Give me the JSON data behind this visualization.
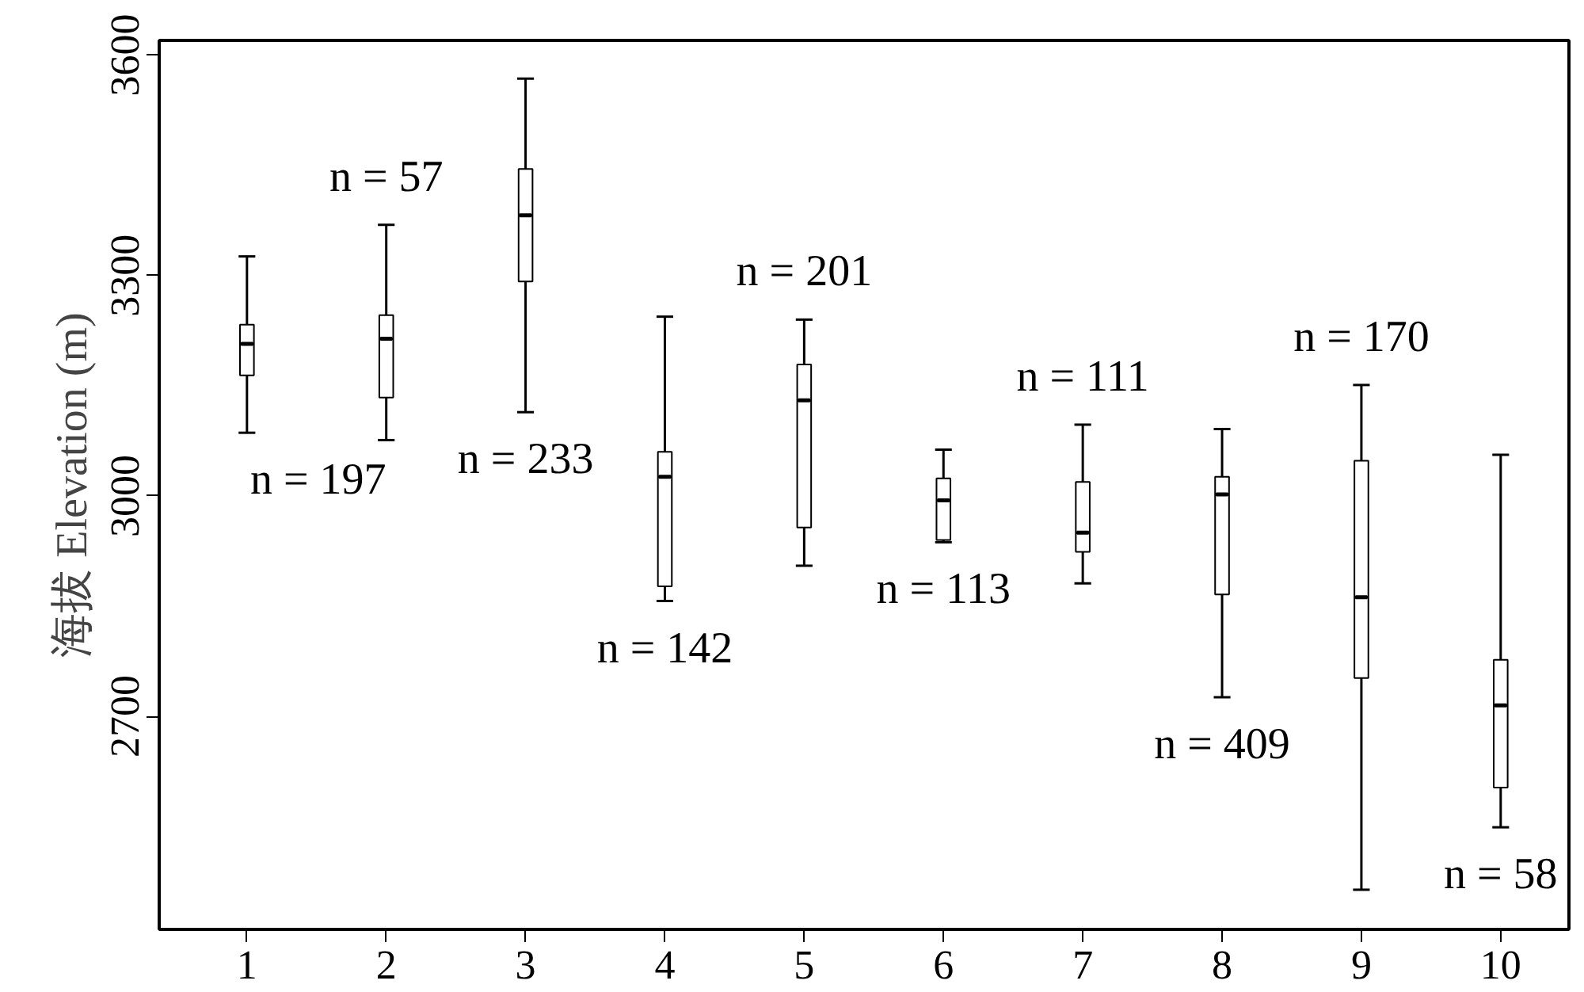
{
  "chart_data": {
    "type": "box",
    "ylabel": "海拔 Elevation (m)",
    "categories": [
      "1",
      "2",
      "3",
      "4",
      "5",
      "6",
      "7",
      "8",
      "9",
      "10"
    ],
    "ylim": [
      2410,
      3620
    ],
    "yticks": [
      2700,
      3000,
      3300,
      3600
    ],
    "grid": false,
    "series": [
      {
        "color": "#ffffff",
        "boxes": [
          {
            "low": 3086,
            "q1": 3164,
            "median": 3207,
            "q3": 3233,
            "high": 3326
          },
          {
            "low": 3076,
            "q1": 3134,
            "median": 3214,
            "q3": 3246,
            "high": 3369
          },
          {
            "low": 3114,
            "q1": 3292,
            "median": 3382,
            "q3": 3445,
            "high": 3568
          },
          {
            "low": 2857,
            "q1": 2877,
            "median": 3026,
            "q3": 3060,
            "high": 3244
          },
          {
            "low": 2905,
            "q1": 2957,
            "median": 3130,
            "q3": 3179,
            "high": 3240
          },
          {
            "low": 2937,
            "q1": 2940,
            "median": 2994,
            "q3": 3024,
            "high": 3063
          },
          {
            "low": 2881,
            "q1": 2924,
            "median": 2950,
            "q3": 3019,
            "high": 3097
          },
          {
            "low": 2726,
            "q1": 2866,
            "median": 3002,
            "q3": 3026,
            "high": 3091
          },
          {
            "low": 2464,
            "q1": 2752,
            "median": 2862,
            "q3": 3048,
            "high": 3151
          },
          {
            "low": 2549,
            "q1": 2603,
            "median": 2715,
            "q3": 2777,
            "high": 3056
          }
        ]
      }
    ],
    "annotations": [
      "n = 197",
      "n = 57",
      "n = 233",
      "n = 142",
      "n = 201",
      "n = 113",
      "n = 111",
      "n = 409",
      "n = 170",
      "n = 58"
    ]
  }
}
